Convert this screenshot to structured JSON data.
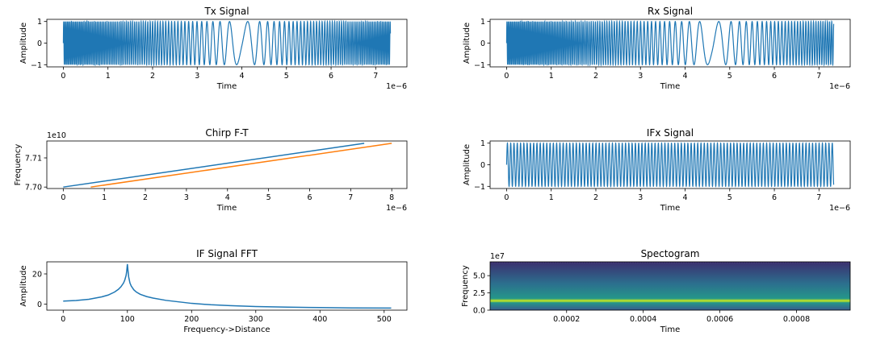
{
  "chart_data": [
    {
      "id": "tx",
      "type": "line",
      "title": "Tx Signal",
      "xlabel": "Time",
      "ylabel": "Amplitude",
      "xlim": [
        -0.37,
        7.7
      ],
      "ylim": [
        -1.1,
        1.1
      ],
      "xticks": [
        0,
        1,
        2,
        3,
        4,
        5,
        6,
        7
      ],
      "xtick_labels": [
        "0",
        "1",
        "2",
        "3",
        "4",
        "5",
        "6",
        "7"
      ],
      "yticks": [
        -1,
        0,
        1
      ],
      "ytick_labels": [
        "−1",
        "0",
        "1"
      ],
      "x_offset_label": "1e−6",
      "signal": {
        "x_start": 0,
        "x_end": 7.33,
        "min_freq_at": 4.0,
        "edge_cycles_per_unit": 35,
        "center_cycles_per_unit": 1.5,
        "amplitude": 1
      },
      "color": "#1f77b4"
    },
    {
      "id": "rx",
      "type": "line",
      "title": "Rx Signal",
      "xlabel": "Time",
      "ylabel": "Amplitude",
      "xlim": [
        -0.37,
        7.7
      ],
      "ylim": [
        -1.1,
        1.1
      ],
      "xticks": [
        0,
        1,
        2,
        3,
        4,
        5,
        6,
        7
      ],
      "xtick_labels": [
        "0",
        "1",
        "2",
        "3",
        "4",
        "5",
        "6",
        "7"
      ],
      "yticks": [
        -1,
        0,
        1
      ],
      "ytick_labels": [
        "−1",
        "0",
        "1"
      ],
      "x_offset_label": "1e−6",
      "signal": {
        "x_start": 0,
        "x_end": 7.33,
        "min_freq_at": 4.6,
        "edge_cycles_per_unit": 35,
        "center_cycles_per_unit": 1.5,
        "amplitude": 1
      },
      "color": "#1f77b4"
    },
    {
      "id": "chirp",
      "type": "line",
      "title": "Chirp F-T",
      "xlabel": "Time",
      "ylabel": "Frequency",
      "xlim": [
        -0.4,
        8.37
      ],
      "ylim": [
        7.6995,
        7.7158
      ],
      "xticks": [
        0,
        1,
        2,
        3,
        4,
        5,
        6,
        7,
        8
      ],
      "xtick_labels": [
        "0",
        "1",
        "2",
        "3",
        "4",
        "5",
        "6",
        "7",
        "8"
      ],
      "yticks": [
        7.7,
        7.71
      ],
      "ytick_labels": [
        "7.70",
        "7.71"
      ],
      "x_offset_label": "1e−6",
      "y_offset_label": "1e10",
      "series": [
        {
          "x": [
            0,
            7.33
          ],
          "y": [
            7.7,
            7.715
          ],
          "color": "#1f77b4"
        },
        {
          "x": [
            0.67,
            8.0
          ],
          "y": [
            7.7,
            7.715
          ],
          "color": "#ff7f0e"
        }
      ]
    },
    {
      "id": "ifx",
      "type": "line",
      "title": "IFx Signal",
      "xlabel": "Time",
      "ylabel": "Amplitude",
      "xlim": [
        -0.37,
        7.7
      ],
      "ylim": [
        -1.1,
        1.1
      ],
      "xticks": [
        0,
        1,
        2,
        3,
        4,
        5,
        6,
        7
      ],
      "xtick_labels": [
        "0",
        "1",
        "2",
        "3",
        "4",
        "5",
        "6",
        "7"
      ],
      "yticks": [
        -1,
        0,
        1
      ],
      "ytick_labels": [
        "−1",
        "0",
        "1"
      ],
      "x_offset_label": "1e−6",
      "signal": {
        "x_start": 0,
        "x_end": 7.33,
        "cycles_per_unit": 13.6,
        "amplitude": 1
      },
      "color": "#1f77b4"
    },
    {
      "id": "fft",
      "type": "line",
      "title": "IF Signal FFT",
      "xlabel": "Frequency->Distance",
      "ylabel": "Amplitude",
      "xlim": [
        -25.5,
        535.5
      ],
      "ylim": [
        -4,
        28
      ],
      "xticks": [
        0,
        100,
        200,
        300,
        400,
        500
      ],
      "xtick_labels": [
        "0",
        "100",
        "200",
        "300",
        "400",
        "500"
      ],
      "yticks": [
        0,
        20
      ],
      "ytick_labels": [
        "0",
        "20"
      ],
      "series": [
        {
          "x": [
            0,
            20,
            40,
            60,
            70,
            80,
            86,
            90,
            94,
            96,
            98,
            99,
            100,
            101,
            102,
            104,
            106,
            110,
            114,
            120,
            130,
            140,
            160,
            180,
            200,
            230,
            260,
            300,
            350,
            400,
            450,
            511
          ],
          "y": [
            2.0,
            2.4,
            3.2,
            4.8,
            6.0,
            8.0,
            9.8,
            11.5,
            14.0,
            16.0,
            19.0,
            22.0,
            26.5,
            22.0,
            18.0,
            14.0,
            12.0,
            9.5,
            8.0,
            6.5,
            5.0,
            4.0,
            2.5,
            1.5,
            0.5,
            -0.4,
            -1.0,
            -1.6,
            -2.0,
            -2.3,
            -2.5,
            -2.6
          ],
          "color": "#1f77b4"
        }
      ]
    },
    {
      "id": "spec",
      "type": "heatmap",
      "title": "Spectogram",
      "xlabel": "Time",
      "ylabel": "Frequency",
      "xlim": [
        4e-07,
        0.00094
      ],
      "ylim": [
        0,
        7
      ],
      "xticks": [
        0.0002,
        0.0004,
        0.0006,
        0.0008
      ],
      "xtick_labels": [
        "0.0002",
        "0.0004",
        "0.0006",
        "0.0008"
      ],
      "yticks": [
        0,
        2.5,
        5
      ],
      "ytick_labels": [
        "0.0",
        "2.5",
        "5.0"
      ],
      "y_offset_label": "1e7",
      "band_center": 1.35,
      "colors": {
        "top": "#3b2f6e",
        "mid": "#2c6f8e",
        "low": "#25968a",
        "band": "#b5de2b",
        "bottom": "#3a5a8c"
      }
    }
  ]
}
